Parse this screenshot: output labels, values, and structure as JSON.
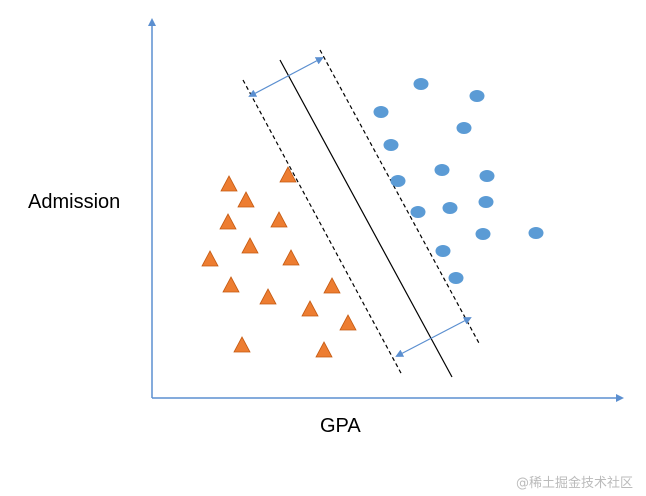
{
  "y_axis_label": "Admission",
  "x_axis_label": "GPA",
  "watermark": "@稀土掘金技术社区"
}
